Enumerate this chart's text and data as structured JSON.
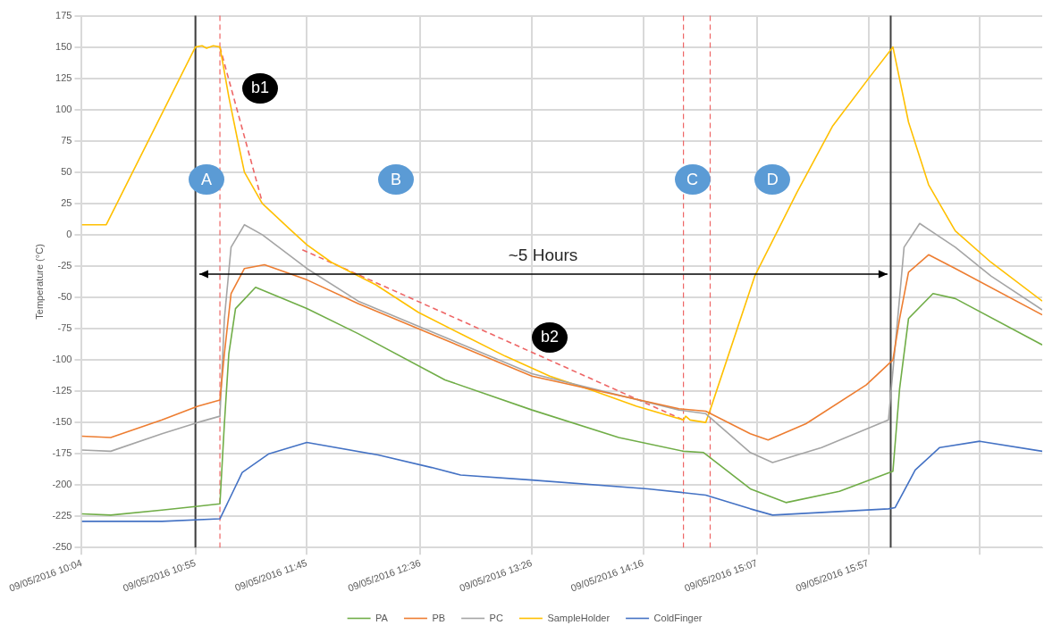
{
  "chart_data": {
    "type": "line",
    "ylabel": "Temperature (°C)",
    "xlim": [
      "2016-05-09T10:04",
      "2016-05-09T17:15"
    ],
    "ylim": [
      -250,
      175
    ],
    "xticks": [
      {
        "value": "2016-05-09T10:04",
        "label": "09/05/2016 10:04"
      },
      {
        "value": "2016-05-09T10:55",
        "label": "09/05/2016 10:55"
      },
      {
        "value": "2016-05-09T11:45",
        "label": "09/05/2016 11:45"
      },
      {
        "value": "2016-05-09T12:36",
        "label": "09/05/2016 12:36"
      },
      {
        "value": "2016-05-09T13:26",
        "label": "09/05/2016 13:26"
      },
      {
        "value": "2016-05-09T14:16",
        "label": "09/05/2016 14:16"
      },
      {
        "value": "2016-05-09T15:07",
        "label": "09/05/2016 15:07"
      },
      {
        "value": "2016-05-09T15:57",
        "label": "09/05/2016 15:57"
      },
      {
        "value": "2016-05-09T16:47",
        "label": null
      }
    ],
    "yticks": [
      -250,
      -225,
      -200,
      -175,
      -150,
      -125,
      -100,
      -75,
      -50,
      -25,
      0,
      25,
      50,
      75,
      100,
      125,
      150,
      175
    ],
    "grid": true,
    "legend": "bottom",
    "marker": "none",
    "line_style": "solid",
    "series": [
      {
        "name": "PA",
        "color": "#70ad47",
        "x": [
          "2016-05-09T10:04",
          "2016-05-09T10:17",
          "2016-05-09T10:40",
          "2016-05-09T10:56",
          "2016-05-09T11:06",
          "2016-05-09T11:08",
          "2016-05-09T11:10",
          "2016-05-09T11:13",
          "2016-05-09T11:22",
          "2016-05-09T11:45",
          "2016-05-09T12:08",
          "2016-05-09T12:47",
          "2016-05-09T13:26",
          "2016-05-09T14:05",
          "2016-05-09T14:34",
          "2016-05-09T14:43",
          "2016-05-09T15:04",
          "2016-05-09T15:20",
          "2016-05-09T15:44",
          "2016-05-09T16:08",
          "2016-05-09T16:11",
          "2016-05-09T16:15",
          "2016-05-09T16:26",
          "2016-05-09T16:36",
          "2016-05-09T17:15"
        ],
        "values": [
          -223,
          -224,
          -220,
          -217,
          -215,
          -151,
          -95,
          -59,
          -42,
          -59,
          -79,
          -116,
          -140,
          -162,
          -173,
          -174,
          -203,
          -214,
          -205,
          -189,
          -123,
          -67,
          -47,
          -51,
          -88
        ]
      },
      {
        "name": "PB",
        "color": "#ed7d31",
        "x": [
          "2016-05-09T10:04",
          "2016-05-09T10:17",
          "2016-05-09T10:40",
          "2016-05-09T10:56",
          "2016-05-09T11:06",
          "2016-05-09T11:08",
          "2016-05-09T11:11",
          "2016-05-09T11:17",
          "2016-05-09T11:26",
          "2016-05-09T11:45",
          "2016-05-09T12:08",
          "2016-05-09T13:26",
          "2016-05-09T14:32",
          "2016-05-09T14:44",
          "2016-05-09T15:04",
          "2016-05-09T15:12",
          "2016-05-09T15:29",
          "2016-05-09T15:56",
          "2016-05-09T16:08",
          "2016-05-09T16:11",
          "2016-05-09T16:15",
          "2016-05-09T16:24",
          "2016-05-09T16:36",
          "2016-05-09T17:15"
        ],
        "values": [
          -161,
          -162,
          -148,
          -137,
          -132,
          -95,
          -47,
          -27,
          -24,
          -36,
          -55,
          -113,
          -139,
          -141,
          -159,
          -164,
          -151,
          -120,
          -100,
          -67,
          -30,
          -16,
          -27,
          -64
        ]
      },
      {
        "name": "PC",
        "color": "#a5a5a5",
        "x": [
          "2016-05-09T10:04",
          "2016-05-09T10:17",
          "2016-05-09T10:40",
          "2016-05-09T10:56",
          "2016-05-09T11:06",
          "2016-05-09T11:08",
          "2016-05-09T11:11",
          "2016-05-09T11:17",
          "2016-05-09T11:25",
          "2016-05-09T11:45",
          "2016-05-09T12:08",
          "2016-05-09T13:26",
          "2016-05-09T14:32",
          "2016-05-09T14:44",
          "2016-05-09T15:04",
          "2016-05-09T15:14",
          "2016-05-09T15:36",
          "2016-05-09T16:06",
          "2016-05-09T16:11",
          "2016-05-09T16:13",
          "2016-05-09T16:20",
          "2016-05-09T16:36",
          "2016-05-09T16:52",
          "2016-05-09T17:15"
        ],
        "values": [
          -172,
          -173,
          -159,
          -150,
          -145,
          -67,
          -10,
          8,
          0,
          -27,
          -53,
          -111,
          -140,
          -143,
          -174,
          -182,
          -170,
          -148,
          -50,
          -10,
          9,
          -10,
          -33,
          -60
        ]
      },
      {
        "name": "SampleHolder",
        "color": "#ffc000",
        "x": [
          "2016-05-09T10:04",
          "2016-05-09T10:15",
          "2016-05-09T10:55",
          "2016-05-09T10:58",
          "2016-05-09T11:00",
          "2016-05-09T11:03",
          "2016-05-09T11:06",
          "2016-05-09T11:10",
          "2016-05-09T11:14",
          "2016-05-09T11:17",
          "2016-05-09T11:25",
          "2016-05-09T11:37",
          "2016-05-09T11:45",
          "2016-05-09T11:56",
          "2016-05-09T12:16",
          "2016-05-09T12:35",
          "2016-05-09T12:55",
          "2016-05-09T13:14",
          "2016-05-09T13:34",
          "2016-05-09T13:54",
          "2016-05-09T14:13",
          "2016-05-09T14:34",
          "2016-05-09T14:35",
          "2016-05-09T14:37",
          "2016-05-09T14:44",
          "2016-05-09T14:46",
          "2016-05-09T15:06",
          "2016-05-09T15:25",
          "2016-05-09T15:41",
          "2016-05-09T15:58",
          "2016-05-09T16:08",
          "2016-05-09T16:15",
          "2016-05-09T16:24",
          "2016-05-09T16:36",
          "2016-05-09T16:52",
          "2016-05-09T17:15"
        ],
        "values": [
          8,
          8,
          150,
          151,
          149,
          151,
          150,
          110,
          75,
          50,
          25,
          5,
          -8,
          -22,
          -40,
          -62,
          -80,
          -97,
          -113,
          -125,
          -137,
          -148,
          -145,
          -148,
          -150,
          -140,
          -33,
          34,
          87,
          127,
          150,
          90,
          40,
          3,
          -22,
          -53
        ]
      },
      {
        "name": "ColdFinger",
        "color": "#4472c4",
        "x": [
          "2016-05-09T10:04",
          "2016-05-09T10:40",
          "2016-05-09T11:06",
          "2016-05-09T11:16",
          "2016-05-09T11:28",
          "2016-05-09T11:45",
          "2016-05-09T12:17",
          "2016-05-09T12:41",
          "2016-05-09T12:54",
          "2016-05-09T13:26",
          "2016-05-09T14:18",
          "2016-05-09T14:44",
          "2016-05-09T15:04",
          "2016-05-09T15:14",
          "2016-05-09T16:06",
          "2016-05-09T16:09",
          "2016-05-09T16:18",
          "2016-05-09T16:29",
          "2016-05-09T16:47",
          "2016-05-09T17:15"
        ],
        "values": [
          -229,
          -229,
          -227,
          -190,
          -175,
          -166,
          -176,
          -186,
          -192,
          -196,
          -203,
          -208,
          -219,
          -224,
          -219,
          -218,
          -188,
          -170,
          -165,
          -173
        ]
      },
      {
        "color": "#ee6666",
        "line_style": "dashed",
        "x": [
          "2016-05-09T11:06",
          "2016-05-09T11:25"
        ],
        "values": [
          150,
          26
        ]
      },
      {
        "color": "#ee6666",
        "line_style": "dashed",
        "x": [
          "2016-05-09T11:43",
          "2016-05-09T14:34"
        ],
        "values": [
          -12,
          -148
        ]
      }
    ],
    "ref_lines": [
      {
        "axis": "x",
        "value": "2016-05-09T10:55",
        "color": "#404040",
        "line_style": "solid"
      },
      {
        "axis": "x",
        "value": "2016-05-09T16:07",
        "color": "#404040",
        "line_style": "solid"
      },
      {
        "axis": "x",
        "value": "2016-05-09T11:06",
        "color": "#ee6666",
        "line_style": "dashed"
      },
      {
        "axis": "x",
        "value": "2016-05-09T14:34",
        "color": "#ee6666",
        "line_style": "dashed"
      },
      {
        "axis": "x",
        "value": "2016-05-09T14:46",
        "color": "#ee6666",
        "line_style": "dashed"
      }
    ],
    "annotations": [
      {
        "text": "A",
        "x": "2016-05-09T11:00",
        "y": 44
      },
      {
        "text": "B",
        "x": "2016-05-09T12:25",
        "y": 44
      },
      {
        "text": "C",
        "x": "2016-05-09T14:38",
        "y": 44
      },
      {
        "text": "D",
        "x": "2016-05-09T15:14",
        "y": 44
      },
      {
        "text": "b1",
        "x": "2016-05-09T11:24",
        "y": 117
      },
      {
        "text": "b2",
        "x": "2016-05-09T13:34",
        "y": -82
      },
      "~5 Hours"
    ]
  }
}
